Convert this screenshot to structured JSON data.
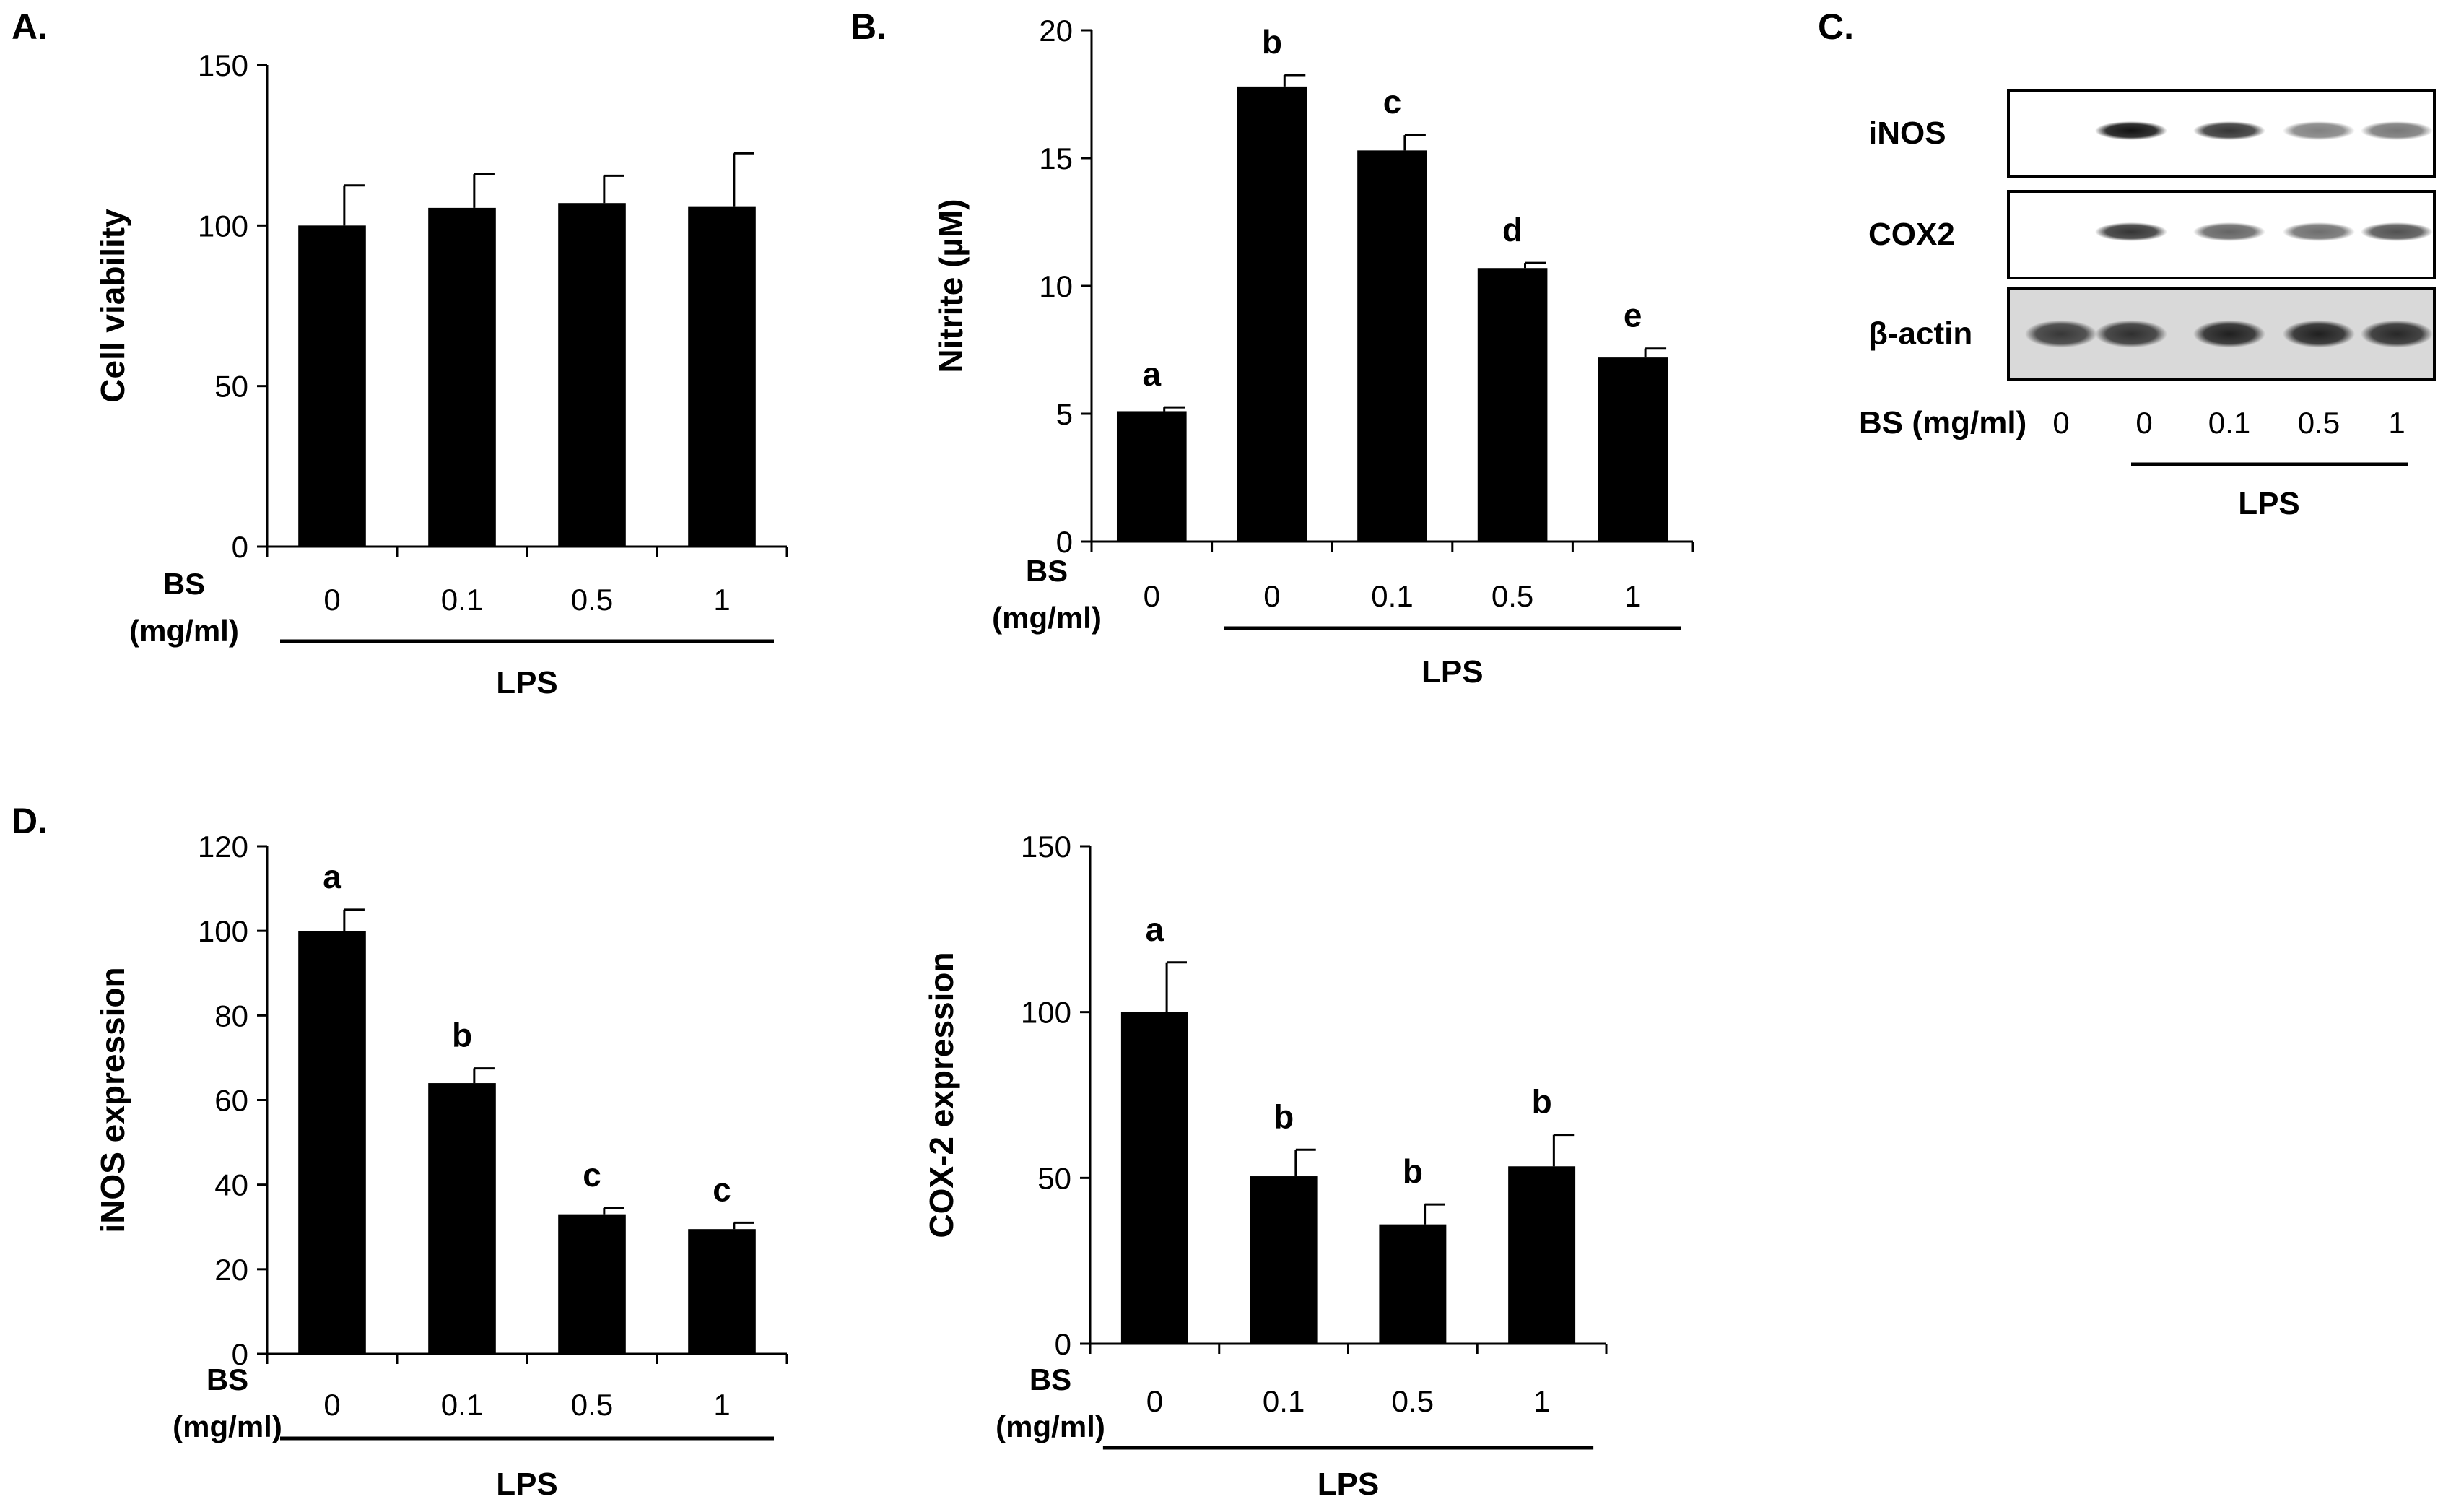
{
  "colors": {
    "bar": "#000000",
    "axis": "#000000",
    "background": "#ffffff",
    "blot_bg": "#e8e8e8",
    "band": "#222222"
  },
  "chart_data": [
    {
      "panel": "A.",
      "type": "bar",
      "ylabel": "Cell viability",
      "ylim": [
        0,
        150
      ],
      "yticks": [
        0,
        50,
        100,
        150
      ],
      "bs_label_line1": "BS",
      "bs_label_line2": "(mg/ml)",
      "categories": [
        "0",
        "0.1",
        "0.5",
        "1"
      ],
      "values": [
        100,
        105.5,
        107,
        106
      ],
      "errors": [
        12.5,
        10.5,
        8.5,
        16.5
      ],
      "significance": [
        "",
        "",
        "",
        ""
      ],
      "lps_label": "LPS",
      "lps_covers": [
        0,
        3
      ]
    },
    {
      "panel": "B.",
      "type": "bar",
      "ylabel": "Nitrite (µM)",
      "ylim": [
        0,
        20
      ],
      "yticks": [
        0,
        5,
        10,
        15,
        20
      ],
      "bs_label_line1": "BS",
      "bs_label_line2": "(mg/ml)",
      "categories": [
        "0",
        "0",
        "0.1",
        "0.5",
        "1"
      ],
      "values": [
        5.1,
        17.8,
        15.3,
        10.7,
        7.2
      ],
      "errors": [
        0.15,
        0.45,
        0.6,
        0.2,
        0.35
      ],
      "significance": [
        "a",
        "b",
        "c",
        "d",
        "e"
      ],
      "lps_label": "LPS",
      "lps_covers": [
        1,
        4
      ]
    },
    {
      "panel": "D.",
      "type": "bar",
      "ylabel": "iNOS expression",
      "ylim": [
        0,
        120
      ],
      "yticks": [
        0,
        20,
        40,
        60,
        80,
        100,
        120
      ],
      "bs_label_line1": "BS",
      "bs_label_line2": "(mg/ml)",
      "categories": [
        "0",
        "0.1",
        "0.5",
        "1"
      ],
      "values": [
        100,
        64,
        33,
        29.5
      ],
      "errors": [
        5,
        3.5,
        1.5,
        1.5
      ],
      "significance": [
        "a",
        "b",
        "c",
        "c"
      ],
      "lps_label": "LPS",
      "lps_covers": [
        0,
        3
      ]
    },
    {
      "panel": "",
      "type": "bar",
      "ylabel": "COX-2 expression",
      "ylim": [
        0,
        150
      ],
      "yticks": [
        0,
        50,
        100,
        150
      ],
      "bs_label_line1": "BS",
      "bs_label_line2": "(mg/ml)",
      "categories": [
        "0",
        "0.1",
        "0.5",
        "1"
      ],
      "values": [
        100,
        50.5,
        36,
        53.5
      ],
      "errors": [
        15,
        8,
        6,
        9.5
      ],
      "significance": [
        "a",
        "b",
        "b",
        "b"
      ],
      "lps_label": "LPS",
      "lps_covers": [
        0,
        3
      ]
    }
  ],
  "blot": {
    "panel": "C.",
    "rows": [
      {
        "label": "iNOS",
        "intensities": [
          0,
          1.0,
          0.75,
          0.35,
          0.4
        ]
      },
      {
        "label": "COX2",
        "intensities": [
          0,
          0.75,
          0.5,
          0.45,
          0.6
        ]
      },
      {
        "label": "β-actin",
        "intensities": [
          0.7,
          0.75,
          0.85,
          0.85,
          0.8
        ]
      }
    ],
    "bs_label": "BS (mg/ml)",
    "lanes": [
      "0",
      "0",
      "0.1",
      "0.5",
      "1"
    ],
    "lps_label": "LPS",
    "lps_covers": [
      1,
      4
    ]
  }
}
